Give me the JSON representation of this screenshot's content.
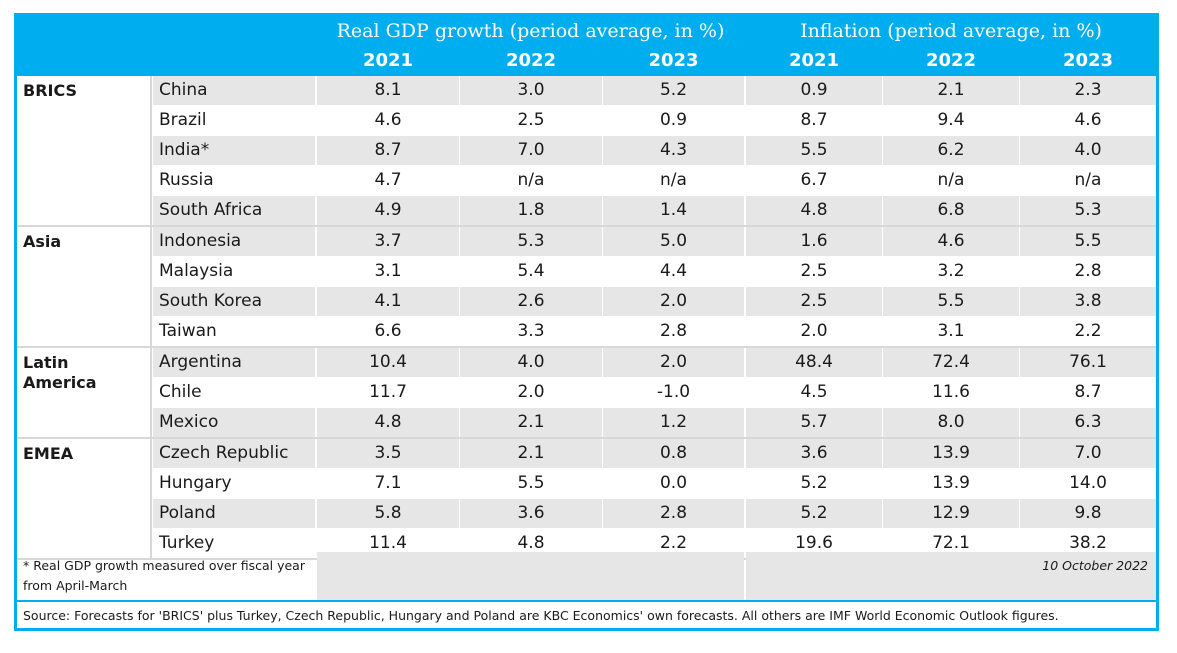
{
  "header": {
    "gdp_title": "Real GDP growth (period average, in %)",
    "inflation_title": "Inflation (period average, in %)",
    "years": [
      "2021",
      "2022",
      "2023",
      "2021",
      "2022",
      "2023"
    ]
  },
  "groups": [
    {
      "label": "BRICS",
      "rows": [
        {
          "country": "China",
          "gdp": [
            "8.1",
            "3.0",
            "5.2"
          ],
          "inflation": [
            "0.9",
            "2.1",
            "2.3"
          ]
        },
        {
          "country": "Brazil",
          "gdp": [
            "4.6",
            "2.5",
            "0.9"
          ],
          "inflation": [
            "8.7",
            "9.4",
            "4.6"
          ]
        },
        {
          "country": "India*",
          "gdp": [
            "8.7",
            "7.0",
            "4.3"
          ],
          "inflation": [
            "5.5",
            "6.2",
            "4.0"
          ]
        },
        {
          "country": "Russia",
          "gdp": [
            "4.7",
            "n/a",
            "n/a"
          ],
          "inflation": [
            "6.7",
            "n/a",
            "n/a"
          ]
        },
        {
          "country": "South Africa",
          "gdp": [
            "4.9",
            "1.8",
            "1.4"
          ],
          "inflation": [
            "4.8",
            "6.8",
            "5.3"
          ]
        }
      ]
    },
    {
      "label": "Asia",
      "rows": [
        {
          "country": "Indonesia",
          "gdp": [
            "3.7",
            "5.3",
            "5.0"
          ],
          "inflation": [
            "1.6",
            "4.6",
            "5.5"
          ]
        },
        {
          "country": "Malaysia",
          "gdp": [
            "3.1",
            "5.4",
            "4.4"
          ],
          "inflation": [
            "2.5",
            "3.2",
            "2.8"
          ]
        },
        {
          "country": "South Korea",
          "gdp": [
            "4.1",
            "2.6",
            "2.0"
          ],
          "inflation": [
            "2.5",
            "5.5",
            "3.8"
          ]
        },
        {
          "country": "Taiwan",
          "gdp": [
            "6.6",
            "3.3",
            "2.8"
          ],
          "inflation": [
            "2.0",
            "3.1",
            "2.2"
          ]
        }
      ]
    },
    {
      "label": "Latin America",
      "rows": [
        {
          "country": "Argentina",
          "gdp": [
            "10.4",
            "4.0",
            "2.0"
          ],
          "inflation": [
            "48.4",
            "72.4",
            "76.1"
          ]
        },
        {
          "country": "Chile",
          "gdp": [
            "11.7",
            "2.0",
            "-1.0"
          ],
          "inflation": [
            "4.5",
            "11.6",
            "8.7"
          ]
        },
        {
          "country": "Mexico",
          "gdp": [
            "4.8",
            "2.1",
            "1.2"
          ],
          "inflation": [
            "5.7",
            "8.0",
            "6.3"
          ]
        }
      ]
    },
    {
      "label": "EMEA",
      "rows": [
        {
          "country": "Czech Republic",
          "gdp": [
            "3.5",
            "2.1",
            "0.8"
          ],
          "inflation": [
            "3.6",
            "13.9",
            "7.0"
          ]
        },
        {
          "country": "Hungary",
          "gdp": [
            "7.1",
            "5.5",
            "0.0"
          ],
          "inflation": [
            "5.2",
            "13.9",
            "14.0"
          ]
        },
        {
          "country": "Poland",
          "gdp": [
            "5.8",
            "3.6",
            "2.8"
          ],
          "inflation": [
            "5.2",
            "12.9",
            "9.8"
          ]
        },
        {
          "country": "Turkey",
          "gdp": [
            "11.4",
            "4.8",
            "2.2"
          ],
          "inflation": [
            "19.6",
            "72.1",
            "38.2"
          ]
        }
      ]
    }
  ],
  "footnote": "* Real GDP growth measured over fiscal year from April-March",
  "date": "10 October 2022",
  "source": "Source: Forecasts for 'BRICS' plus Turkey, Czech Republic, Hungary and Poland are KBC Economics' own forecasts. All others are IMF World Economic Outlook figures."
}
